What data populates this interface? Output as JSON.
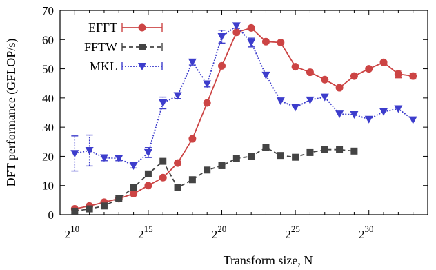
{
  "chart_data": {
    "type": "line",
    "xlabel": "Transform size, N",
    "ylabel": "DFT performance (GFLOP/s)",
    "x_scale": "log2",
    "x_ticks": [
      {
        "exp": 10,
        "base": "2",
        "sup": "10"
      },
      {
        "exp": 15,
        "base": "2",
        "sup": "15"
      },
      {
        "exp": 20,
        "base": "2",
        "sup": "20"
      },
      {
        "exp": 25,
        "base": "2",
        "sup": "25"
      },
      {
        "exp": 30,
        "base": "2",
        "sup": "30"
      }
    ],
    "y_ticks": [
      0,
      10,
      20,
      30,
      40,
      50,
      60,
      70
    ],
    "ylim": [
      0,
      70
    ],
    "xlim_exp": [
      9,
      34
    ],
    "grid": false,
    "legend_position": "top-left",
    "series": [
      {
        "name": "EFFT",
        "color": "#cc4444",
        "marker": "circle",
        "dash": "solid",
        "points": [
          {
            "exp": 10,
            "y": 2.0
          },
          {
            "exp": 11,
            "y": 3.0
          },
          {
            "exp": 12,
            "y": 4.3
          },
          {
            "exp": 13,
            "y": 5.5
          },
          {
            "exp": 14,
            "y": 7.2
          },
          {
            "exp": 15,
            "y": 10.0
          },
          {
            "exp": 16,
            "y": 12.7
          },
          {
            "exp": 17,
            "y": 17.7
          },
          {
            "exp": 18,
            "y": 26.0
          },
          {
            "exp": 19,
            "y": 38.3
          },
          {
            "exp": 20,
            "y": 51.0
          },
          {
            "exp": 21,
            "y": 62.5
          },
          {
            "exp": 22,
            "y": 64.0
          },
          {
            "exp": 23,
            "y": 59.3
          },
          {
            "exp": 24,
            "y": 59.0
          },
          {
            "exp": 25,
            "y": 50.7
          },
          {
            "exp": 26,
            "y": 48.8
          },
          {
            "exp": 27,
            "y": 46.3
          },
          {
            "exp": 28,
            "y": 43.5
          },
          {
            "exp": 29,
            "y": 47.5
          },
          {
            "exp": 30,
            "y": 50.0
          },
          {
            "exp": 31,
            "y": 52.2
          },
          {
            "exp": 32,
            "y": 48.2,
            "err": 1.3
          },
          {
            "exp": 33,
            "y": 47.5,
            "err": 1.0
          }
        ]
      },
      {
        "name": "FFTW",
        "color": "#444444",
        "marker": "square",
        "dash": "dashed",
        "points": [
          {
            "exp": 10,
            "y": 1.2
          },
          {
            "exp": 11,
            "y": 2.0
          },
          {
            "exp": 12,
            "y": 3.0
          },
          {
            "exp": 13,
            "y": 5.5
          },
          {
            "exp": 14,
            "y": 9.3
          },
          {
            "exp": 15,
            "y": 14.0
          },
          {
            "exp": 16,
            "y": 18.3
          },
          {
            "exp": 17,
            "y": 9.3
          },
          {
            "exp": 18,
            "y": 12.0
          },
          {
            "exp": 19,
            "y": 15.3
          },
          {
            "exp": 20,
            "y": 16.8
          },
          {
            "exp": 21,
            "y": 19.3
          },
          {
            "exp": 22,
            "y": 20.0
          },
          {
            "exp": 23,
            "y": 23.0
          },
          {
            "exp": 24,
            "y": 20.3
          },
          {
            "exp": 25,
            "y": 19.7
          },
          {
            "exp": 26,
            "y": 21.3
          },
          {
            "exp": 27,
            "y": 22.3
          },
          {
            "exp": 28,
            "y": 22.3
          },
          {
            "exp": 29,
            "y": 21.8
          }
        ]
      },
      {
        "name": "MKL",
        "color": "#3d3dcc",
        "marker": "triangle-down",
        "dash": "dotted",
        "points": [
          {
            "exp": 10,
            "y": 21.0,
            "err": 6.0
          },
          {
            "exp": 11,
            "y": 22.0,
            "err": 5.3
          },
          {
            "exp": 12,
            "y": 19.5,
            "err": 1.0
          },
          {
            "exp": 13,
            "y": 19.3,
            "err": 0.8
          },
          {
            "exp": 14,
            "y": 16.8,
            "err": 0.8
          },
          {
            "exp": 15,
            "y": 21.3,
            "err": 1.7
          },
          {
            "exp": 16,
            "y": 38.3,
            "err": 2.0
          },
          {
            "exp": 17,
            "y": 40.8,
            "err": 1.0
          },
          {
            "exp": 18,
            "y": 52.3,
            "err": 1.0
          },
          {
            "exp": 19,
            "y": 44.8,
            "err": 1.0
          },
          {
            "exp": 20,
            "y": 61.0,
            "err": 2.2
          },
          {
            "exp": 21,
            "y": 64.7,
            "err": 0.8
          },
          {
            "exp": 22,
            "y": 59.0,
            "err": 1.5
          },
          {
            "exp": 23,
            "y": 47.8
          },
          {
            "exp": 24,
            "y": 39.0
          },
          {
            "exp": 25,
            "y": 36.8
          },
          {
            "exp": 26,
            "y": 39.3
          },
          {
            "exp": 27,
            "y": 40.3
          },
          {
            "exp": 28,
            "y": 34.5
          },
          {
            "exp": 29,
            "y": 34.3
          },
          {
            "exp": 30,
            "y": 32.7
          },
          {
            "exp": 31,
            "y": 35.3
          },
          {
            "exp": 32,
            "y": 36.3
          },
          {
            "exp": 33,
            "y": 32.5
          }
        ]
      }
    ]
  }
}
